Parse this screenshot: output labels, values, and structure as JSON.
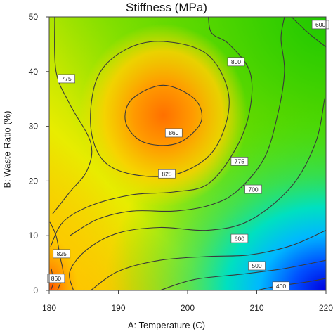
{
  "chart_data": {
    "type": "heatmap",
    "title": "Stiffness (MPa)",
    "xlabel": "A: Temperature (C)",
    "ylabel": "B: Waste Ratio (%)",
    "xlim": [
      180,
      220
    ],
    "ylim": [
      0,
      50
    ],
    "x_ticks": [
      "180",
      "190",
      "200",
      "210",
      "220"
    ],
    "y_ticks": [
      "0",
      "10",
      "20",
      "30",
      "40",
      "50"
    ],
    "grid": false,
    "colormap": [
      "#0000ff",
      "#00b3ff",
      "#00e8b0",
      "#5ee600",
      "#d9ef00",
      "#ffd000",
      "#ff9a00",
      "#ff6a00",
      "#ff4500"
    ],
    "surface_peak": {
      "x": 196.5,
      "y": 32,
      "value": 870
    },
    "contours": [
      {
        "label": "860",
        "level": 860,
        "label_at": [
          198,
          28.8
        ]
      },
      {
        "label": "825",
        "level": 825,
        "label_at": [
          197,
          21.3
        ]
      },
      {
        "label": "800",
        "level": 800,
        "label_at": [
          207,
          41.8
        ]
      },
      {
        "label": "775",
        "level": 775,
        "label_at": [
          182.5,
          38.7
        ]
      },
      {
        "label": "775",
        "level": 775,
        "label_at": [
          207.5,
          23.6
        ]
      },
      {
        "label": "700",
        "level": 700,
        "label_at": [
          209.5,
          18.5
        ]
      },
      {
        "label": "600",
        "level": 600,
        "label_at": [
          219.2,
          48.6
        ]
      },
      {
        "label": "600",
        "level": 600,
        "label_at": [
          207.5,
          9.5
        ]
      },
      {
        "label": "500",
        "level": 500,
        "label_at": [
          210,
          4.5
        ]
      },
      {
        "label": "400",
        "level": 400,
        "label_at": [
          213.5,
          0.8
        ]
      },
      {
        "label": "825",
        "level": 825,
        "label_at": [
          181.8,
          6.7
        ]
      },
      {
        "label": "860",
        "level": 860,
        "label_at": [
          181,
          2.2
        ]
      }
    ]
  }
}
